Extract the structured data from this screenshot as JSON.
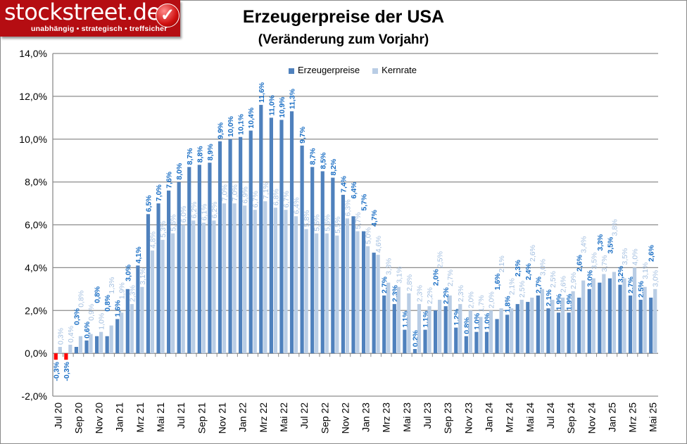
{
  "logo": {
    "brand": "stockstreet.de",
    "tagline": "unabhängig • strategisch • treffsicher",
    "icon": "check-icon"
  },
  "chart_data": {
    "type": "bar",
    "title": "Erzeugerpreise der USA",
    "subtitle": "(Veränderung zum Vorjahr)",
    "xlabel": "",
    "ylabel": "",
    "ylim": [
      -2,
      14
    ],
    "yticks": [
      "-2,0%",
      "0,0%",
      "2,0%",
      "4,0%",
      "6,0%",
      "8,0%",
      "10,0%",
      "12,0%",
      "14,0%"
    ],
    "grid": true,
    "legend_position": "top-center",
    "categories": [
      "Jul 20",
      "Aug 20",
      "Sep 20",
      "Okt 20",
      "Nov 20",
      "Dez 20",
      "Jan 21",
      "Feb 21",
      "Mrz 21",
      "Apr 21",
      "Mai 21",
      "Jun 21",
      "Jul 21",
      "Aug 21",
      "Sep 21",
      "Okt 21",
      "Nov 21",
      "Dez 21",
      "Jan 22",
      "Feb 22",
      "Mrz 22",
      "Apr 22",
      "Mai 22",
      "Jun 22",
      "Jul 22",
      "Aug 22",
      "Sep 22",
      "Okt 22",
      "Nov 22",
      "Dez 22",
      "Jan 23",
      "Feb 23",
      "Mrz 23",
      "Apr 23",
      "Mai 23",
      "Jun 23",
      "Jul 23",
      "Aug 23",
      "Sep 23",
      "Okt 23",
      "Nov 23",
      "Dez 23",
      "Jan 24",
      "Feb 24",
      "Mrz 24",
      "Apr 24",
      "Mai 24",
      "Jun 24",
      "Jul 24",
      "Aug 24",
      "Sep 24",
      "Okt 24",
      "Nov 24",
      "Dez 24",
      "Jan 25",
      "Feb 25",
      "Mrz 25",
      "Apr 25",
      "Mai 25"
    ],
    "tick_labels": [
      "Jul 20",
      "Sep 20",
      "Nov 20",
      "Jan 21",
      "Mrz 21",
      "Mai 21",
      "Jul 21",
      "Sep 21",
      "Nov 21",
      "Jan 22",
      "Mrz 22",
      "Mai 22",
      "Jul 22",
      "Sep 22",
      "Nov 22",
      "Jan 23",
      "Mrz 23",
      "Mai 23",
      "Jul 23",
      "Sep 23",
      "Nov 23",
      "Jan 24",
      "Mrz 24",
      "Mai 24",
      "Jul 24",
      "Sep 24",
      "Nov 24",
      "Jan 25",
      "Mrz 25",
      "Mai 25"
    ],
    "series": [
      {
        "name": "Erzeugerpreise",
        "color": "#4f81bd",
        "negative_color": "#ff0000",
        "label_color": "#1a6ec4",
        "values": [
          -0.3,
          -0.3,
          0.3,
          0.6,
          0.8,
          0.8,
          1.6,
          3.0,
          4.1,
          6.5,
          7.0,
          7.6,
          8.0,
          8.7,
          8.8,
          8.9,
          9.9,
          10.0,
          10.1,
          10.4,
          11.6,
          11.0,
          10.9,
          11.3,
          9.7,
          8.7,
          8.5,
          8.2,
          7.4,
          6.4,
          5.7,
          4.7,
          2.7,
          2.3,
          1.1,
          0.2,
          1.1,
          2.0,
          2.2,
          1.2,
          0.8,
          1.0,
          1.0,
          1.6,
          1.8,
          2.3,
          2.4,
          2.7,
          2.1,
          1.9,
          1.9,
          2.6,
          3.0,
          3.3,
          3.5,
          3.2,
          2.7,
          2.5,
          2.6
        ]
      },
      {
        "name": "Kernrate",
        "color": "#b9cde5",
        "label_color": "#a3bfe0",
        "values": [
          0.3,
          0.4,
          0.8,
          0.9,
          1.0,
          1.3,
          1.9,
          2.3,
          3.1,
          4.8,
          5.3,
          5.6,
          6.0,
          6.2,
          6.1,
          6.2,
          7.0,
          7.0,
          6.9,
          6.7,
          7.1,
          6.8,
          6.7,
          6.4,
          5.8,
          5.6,
          5.6,
          5.5,
          6.3,
          5.7,
          5.0,
          4.6,
          3.3,
          3.1,
          2.8,
          2.3,
          2.2,
          2.5,
          2.7,
          2.3,
          2.0,
          1.7,
          2.0,
          2.1,
          2.1,
          2.5,
          2.6,
          3.0,
          2.5,
          2.6,
          2.9,
          3.4,
          3.5,
          3.7,
          3.8,
          3.5,
          4.0,
          3.1,
          3.0
        ]
      }
    ]
  }
}
